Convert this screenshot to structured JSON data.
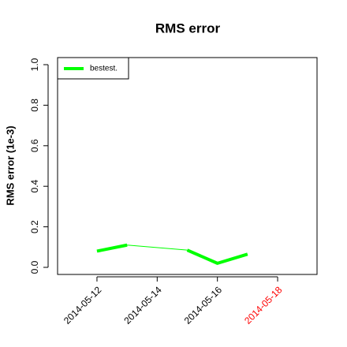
{
  "chart_data": {
    "type": "line",
    "title": "RMS error",
    "ylabel": "RMS error (1e-3)",
    "x": [
      "2014-05-12",
      "2014-05-13",
      "2014-05-14",
      "2014-05-15",
      "2014-05-16",
      "2014-05-17"
    ],
    "series": [
      {
        "name": "bestest.",
        "color": "#00ff00",
        "values": [
          0.08,
          0.11,
          null,
          0.085,
          0.02,
          0.065
        ]
      }
    ],
    "xlim": [
      "2014-05-10T16:36",
      "2014-05-19T07:24"
    ],
    "xticks": [
      "2014-05-12",
      "2014-05-14",
      "2014-05-16",
      "2014-05-18"
    ],
    "xtick_label_colors": [
      "#000000",
      "#000000",
      "#000000",
      "#ff0000"
    ],
    "ylim": [
      -0.035,
      1.035
    ],
    "yticks": [
      {
        "value": 0,
        "label": "0.0"
      },
      0.2,
      0.4,
      0.6,
      0.8,
      {
        "value": 1,
        "label": "1.0"
      }
    ],
    "legend": "top-left",
    "grid": false
  }
}
